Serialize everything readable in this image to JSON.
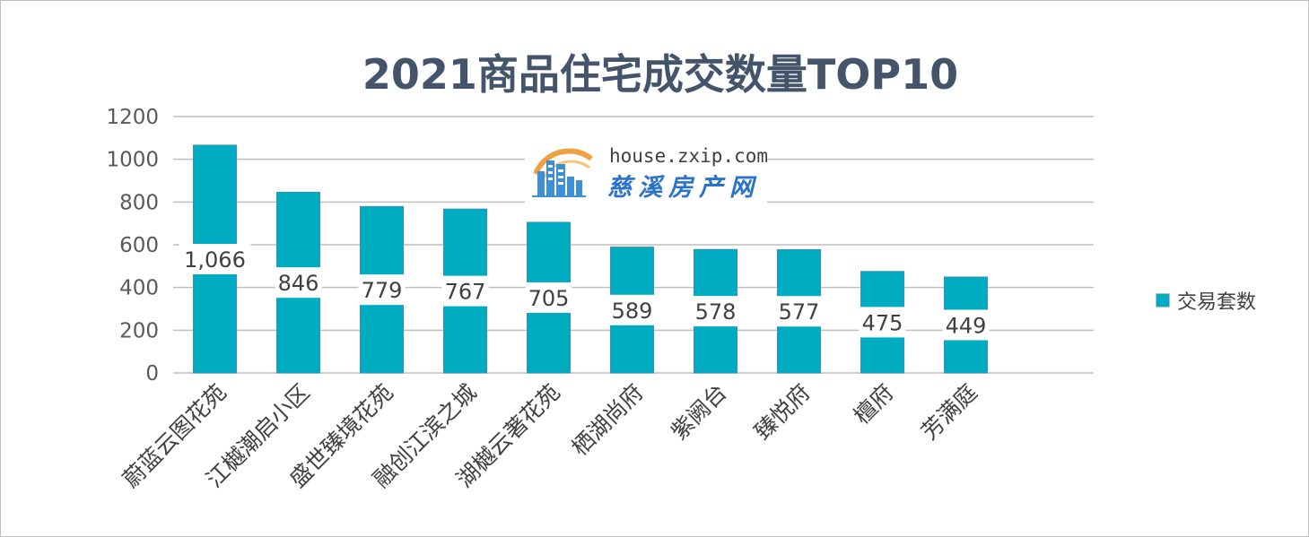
{
  "chart_data": {
    "type": "bar",
    "title": "2021商品住宅成交数量TOP10",
    "categories": [
      "蔚蓝云图花苑",
      "江樾潮启小区",
      "盛世臻境花苑",
      "融创江滨之城",
      "湖樾云著花苑",
      "栖湖尚府",
      "紫阙台",
      "臻悦府",
      "檀府",
      "芳满庭"
    ],
    "series": [
      {
        "name": "交易套数",
        "values": [
          1066,
          846,
          779,
          767,
          705,
          589,
          578,
          577,
          475,
          449
        ],
        "data_labels": [
          "1,066",
          "846",
          "779",
          "767",
          "705",
          "589",
          "578",
          "577",
          "475",
          "449"
        ]
      }
    ],
    "ylim": [
      0,
      1200
    ],
    "yticks": [
      0,
      200,
      400,
      600,
      800,
      1000,
      1200
    ],
    "xlabel": "",
    "ylabel": "",
    "grid": true,
    "legend_position": "right",
    "colors": {
      "bar": "#00acc1",
      "bar_edge": "#3a8fb3",
      "grid": "#bfbfbf",
      "title": "#44546a"
    }
  },
  "watermark": {
    "url": "house.zxip.com",
    "name": "慈溪房产网",
    "icon": "building-logo-icon"
  }
}
